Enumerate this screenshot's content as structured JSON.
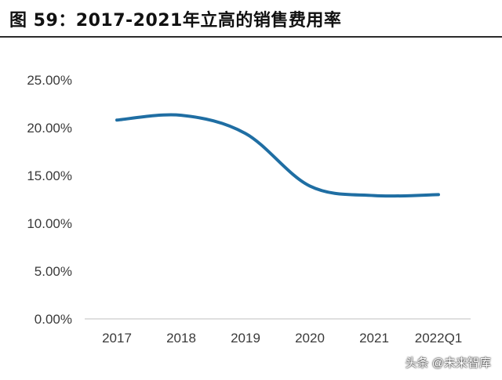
{
  "page": {
    "title": "图 59：2017-2021年立高的销售费用率",
    "watermark": "头条 @未来智库"
  },
  "chart_data": {
    "type": "line",
    "categories": [
      "2017",
      "2018",
      "2019",
      "2020",
      "2021",
      "2022Q1"
    ],
    "series": [
      {
        "values": [
          0.208,
          0.213,
          0.194,
          0.139,
          0.129,
          0.13
        ]
      }
    ],
    "ylim": [
      0,
      0.25
    ],
    "yticks": [
      "0.00%",
      "5.00%",
      "10.00%",
      "15.00%",
      "20.00%",
      "25.00%"
    ],
    "grid": false,
    "legend": "none",
    "colors": {
      "line": "#1f6ea3",
      "axis": "#bfbfbf"
    }
  }
}
